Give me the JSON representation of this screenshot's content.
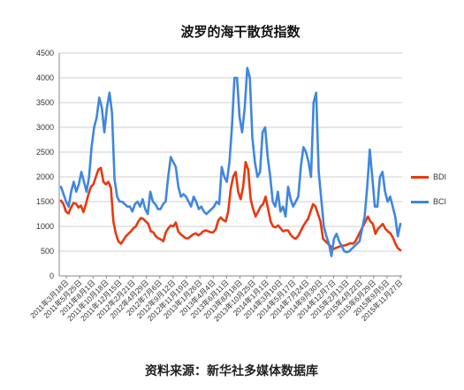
{
  "chart_data": {
    "type": "line",
    "title": "波罗的海干散货指数",
    "source": "资料来源：新华社多媒体数据库",
    "ylim": [
      0,
      4500
    ],
    "yticks": [
      "0",
      "500",
      "1000",
      "1500",
      "2000",
      "2500",
      "3000",
      "3500",
      "4000",
      "4500"
    ],
    "grid": true,
    "legend_position": "right",
    "x_labels": [
      "2011年3月18日",
      "2011年5月25日",
      "2011年8月1日",
      "2011年10月18日",
      "2011年12月15日",
      "2012年2月21日",
      "2012年4月29日",
      "2012年7月6日",
      "2012年9月12日",
      "2012年11月19日",
      "2013年1月26日",
      "2013年4月4日",
      "2013年6月11日",
      "2013年8月18日",
      "2013年10月25日",
      "2014年1月1日",
      "2014年3月10日",
      "2014年5月17日",
      "2014年7月24日",
      "2014年9月30日",
      "2014年12月7日",
      "2015年2月13日",
      "2015年4月22日",
      "2015年6月29日",
      "2015年9月5日",
      "2015年11月27日"
    ],
    "series": [
      {
        "name": "BDI",
        "color": "#e8390e",
        "values": [
          1520,
          1450,
          1300,
          1260,
          1380,
          1470,
          1460,
          1380,
          1420,
          1290,
          1450,
          1650,
          1800,
          1850,
          2000,
          2150,
          2180,
          1900,
          1850,
          1900,
          1780,
          1100,
          850,
          700,
          650,
          720,
          800,
          850,
          900,
          960,
          1000,
          1100,
          1170,
          1150,
          1100,
          1050,
          900,
          880,
          800,
          760,
          740,
          700,
          880,
          960,
          1020,
          1000,
          1080,
          900,
          840,
          800,
          760,
          760,
          800,
          840,
          860,
          820,
          850,
          900,
          920,
          900,
          880,
          880,
          940,
          1120,
          1180,
          1130,
          1100,
          1300,
          1750,
          2000,
          2100,
          1700,
          1550,
          1800,
          2300,
          2150,
          1550,
          1350,
          1200,
          1300,
          1400,
          1450,
          1600,
          1350,
          1100,
          1000,
          980,
          1020,
          960,
          900,
          920,
          920,
          830,
          780,
          750,
          800,
          900,
          1000,
          1080,
          1150,
          1300,
          1450,
          1400,
          1250,
          1100,
          750,
          700,
          650,
          600,
          540,
          560,
          580,
          600,
          610,
          620,
          640,
          660,
          650,
          700,
          800,
          900,
          1000,
          1100,
          1200,
          1100,
          1050,
          850,
          950,
          1000,
          1050,
          950,
          900,
          860,
          780,
          650,
          560,
          520
        ]
      },
      {
        "name": "BCI",
        "color": "#3f86e0",
        "values": [
          1800,
          1650,
          1500,
          1400,
          1700,
          1900,
          1700,
          1850,
          2100,
          1900,
          1700,
          2000,
          2600,
          3000,
          3200,
          3600,
          3400,
          2900,
          3400,
          3700,
          3300,
          1950,
          1600,
          1500,
          1500,
          1450,
          1400,
          1400,
          1300,
          1450,
          1500,
          1400,
          1550,
          1350,
          1250,
          1700,
          1500,
          1450,
          1350,
          1350,
          1450,
          1500,
          2000,
          2400,
          2300,
          2200,
          1800,
          1600,
          1650,
          1600,
          1500,
          1400,
          1600,
          1500,
          1350,
          1400,
          1300,
          1250,
          1300,
          1350,
          1400,
          1500,
          1450,
          2200,
          2000,
          1900,
          2300,
          3000,
          4000,
          4000,
          3200,
          2900,
          3400,
          4200,
          4000,
          2800,
          2300,
          2000,
          2100,
          2900,
          3000,
          2400,
          2000,
          1500,
          1400,
          1700,
          1300,
          1400,
          1200,
          1800,
          1550,
          1400,
          1500,
          1600,
          2200,
          2600,
          2500,
          2300,
          2000,
          3500,
          3700,
          2100,
          1550,
          1000,
          800,
          650,
          400,
          750,
          850,
          700,
          600,
          500,
          480,
          500,
          550,
          600,
          650,
          700,
          950,
          1200,
          1800,
          2550,
          2000,
          1400,
          1400,
          2000,
          2100,
          1700,
          1500,
          1600,
          1400,
          1200,
          800,
          1050
        ]
      }
    ]
  }
}
